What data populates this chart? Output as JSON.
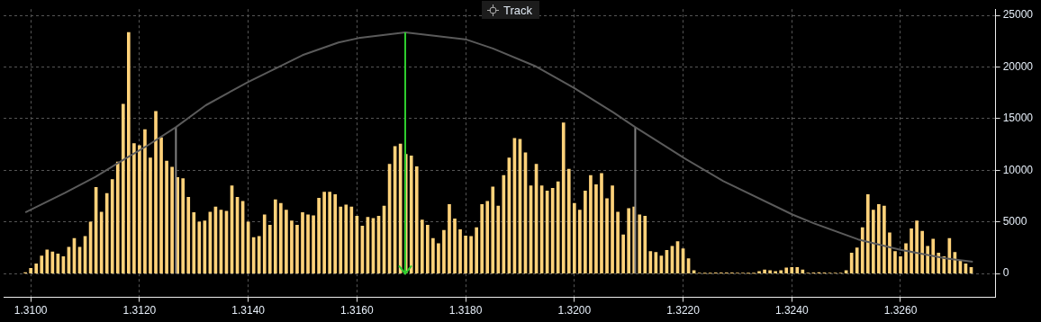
{
  "chart_data": {
    "type": "bar",
    "annotations": [
      "Track"
    ],
    "marker": "none",
    "grid": true,
    "xlim": [
      1.3095,
      1.32775
    ],
    "xticks": [
      {
        "value": 1.31,
        "label": "1.3100"
      },
      {
        "value": 1.312,
        "label": "1.3120"
      },
      {
        "value": 1.314,
        "label": "1.3140"
      },
      {
        "value": 1.316,
        "label": "1.3160"
      },
      {
        "value": 1.318,
        "label": "1.3180"
      },
      {
        "value": 1.32,
        "label": "1.3200"
      },
      {
        "value": 1.322,
        "label": "1.3220"
      },
      {
        "value": 1.324,
        "label": "1.3240"
      },
      {
        "value": 1.326,
        "label": "1.3260"
      }
    ],
    "ylim": [
      -2300,
      25600
    ],
    "yticks": [
      0,
      5000,
      10000,
      15000,
      20000,
      25000
    ],
    "ref_lines": [
      {
        "axis": "x",
        "value": 1.31689,
        "color": "#2ecc2e"
      }
    ],
    "series": [
      {
        "color": "#ffd27a",
        "x": [
          1.3099,
          1.31,
          1.3101,
          1.3102,
          1.3103,
          1.3104,
          1.3105,
          1.3106,
          1.3107,
          1.3108,
          1.3109,
          1.311,
          1.3111,
          1.3112,
          1.3113,
          1.3114,
          1.3115,
          1.3116,
          1.3117,
          1.3118,
          1.3119,
          1.312,
          1.3121,
          1.3122,
          1.3123,
          1.3124,
          1.3125,
          1.3126,
          1.3127,
          1.3128,
          1.3129,
          1.313,
          1.3131,
          1.3132,
          1.3133,
          1.3134,
          1.3135,
          1.3136,
          1.3137,
          1.3138,
          1.3139,
          1.314,
          1.3141,
          1.3142,
          1.3143,
          1.3144,
          1.3145,
          1.3146,
          1.3147,
          1.3148,
          1.3149,
          1.315,
          1.3151,
          1.3152,
          1.3153,
          1.3154,
          1.3155,
          1.3156,
          1.3157,
          1.3158,
          1.3159,
          1.316,
          1.3161,
          1.3162,
          1.3163,
          1.3164,
          1.3165,
          1.3166,
          1.3167,
          1.3168,
          1.3169,
          1.317,
          1.3171,
          1.3172,
          1.3173,
          1.3174,
          1.3175,
          1.3176,
          1.3177,
          1.3178,
          1.3179,
          1.318,
          1.3181,
          1.3182,
          1.3183,
          1.3184,
          1.3185,
          1.3186,
          1.3187,
          1.3188,
          1.3189,
          1.319,
          1.3191,
          1.3192,
          1.3193,
          1.3194,
          1.3195,
          1.3196,
          1.3197,
          1.3198,
          1.3199,
          1.32,
          1.3201,
          1.3202,
          1.3203,
          1.3204,
          1.3205,
          1.3206,
          1.3207,
          1.3208,
          1.3209,
          1.321,
          1.3211,
          1.3212,
          1.3213,
          1.3214,
          1.3215,
          1.3216,
          1.3217,
          1.3218,
          1.3219,
          1.322,
          1.3221,
          1.3222,
          1.3223,
          1.3224,
          1.3225,
          1.3226,
          1.3227,
          1.3228,
          1.3229,
          1.323,
          1.3231,
          1.3232,
          1.3233,
          1.3234,
          1.3235,
          1.3236,
          1.3237,
          1.3238,
          1.3239,
          1.324,
          1.3241,
          1.3242,
          1.3243,
          1.3244,
          1.3245,
          1.3246,
          1.3247,
          1.3248,
          1.3249,
          1.325,
          1.3251,
          1.3252,
          1.3253,
          1.3254,
          1.3255,
          1.3256,
          1.3257,
          1.3258,
          1.3259,
          1.326,
          1.3261,
          1.3262,
          1.3263,
          1.3264,
          1.3265,
          1.3266,
          1.3267,
          1.3268,
          1.3269,
          1.327,
          1.3271,
          1.3272,
          1.3273
        ],
        "values": [
          100,
          500,
          950,
          1700,
          2300,
          2100,
          1900,
          1650,
          2550,
          3400,
          2550,
          3600,
          5000,
          8350,
          5950,
          7750,
          9100,
          10800,
          16400,
          23350,
          12600,
          12400,
          13950,
          11200,
          15700,
          13150,
          10900,
          10300,
          9300,
          9200,
          7400,
          5900,
          5000,
          5100,
          5950,
          6450,
          6150,
          6050,
          8500,
          7400,
          7000,
          5000,
          3500,
          3600,
          5700,
          4700,
          7150,
          6800,
          6150,
          5100,
          4700,
          5900,
          5700,
          5600,
          7300,
          7900,
          7900,
          7650,
          6450,
          6650,
          6450,
          5550,
          4600,
          5450,
          5350,
          5550,
          6550,
          10600,
          12300,
          12550,
          11550,
          11400,
          10350,
          5200,
          4700,
          3400,
          2900,
          4200,
          6700,
          5300,
          4250,
          3650,
          3600,
          4450,
          6700,
          7000,
          8400,
          6550,
          9500,
          11200,
          13100,
          13000,
          11700,
          8500,
          10600,
          8500,
          8000,
          8250,
          8900,
          14600,
          10100,
          6800,
          6150,
          8000,
          9500,
          8600,
          9700,
          7250,
          8500,
          5950,
          3750,
          6300,
          6450,
          5700,
          5550,
          2150,
          2050,
          1700,
          2250,
          2650,
          3100,
          2400,
          1450,
          300,
          50,
          30,
          30,
          80,
          80,
          80,
          80,
          50,
          50,
          30,
          30,
          200,
          350,
          300,
          200,
          300,
          550,
          600,
          600,
          350,
          50,
          80,
          100,
          80,
          50,
          50,
          50,
          300,
          2000,
          2500,
          4450,
          7650,
          6150,
          6700,
          6550,
          3950,
          2150,
          1650,
          2900,
          4350,
          5100,
          4100,
          2650,
          3350,
          2000,
          1650,
          3400,
          2050,
          1300,
          950,
          600
        ]
      },
      {
        "type": "line",
        "color": "#5a5a5a",
        "x": [
          1.3099,
          1.31063,
          1.31119,
          1.31163,
          1.31213,
          1.31267,
          1.31322,
          1.314,
          1.315,
          1.31566,
          1.31603,
          1.31689,
          1.31802,
          1.3185,
          1.31927,
          1.31999,
          1.32072,
          1.32112,
          1.3215,
          1.32201,
          1.32274,
          1.32402,
          1.32441,
          1.32522,
          1.326,
          1.32683,
          1.32733
        ],
        "values": [
          5930,
          7820,
          9370,
          10790,
          12340,
          14180,
          16300,
          18560,
          21150,
          22370,
          22800,
          23360,
          22650,
          21800,
          20110,
          17990,
          15590,
          14180,
          12910,
          11210,
          8950,
          5700,
          4860,
          3310,
          2310,
          1470,
          1150
        ]
      },
      {
        "type": "line",
        "color": "#808080",
        "x": [
          1.31267,
          1.31267
        ],
        "values": [
          0,
          14180
        ]
      },
      {
        "type": "line",
        "color": "#808080",
        "x": [
          1.32112,
          1.32112
        ],
        "values": [
          0,
          14180
        ]
      }
    ]
  }
}
